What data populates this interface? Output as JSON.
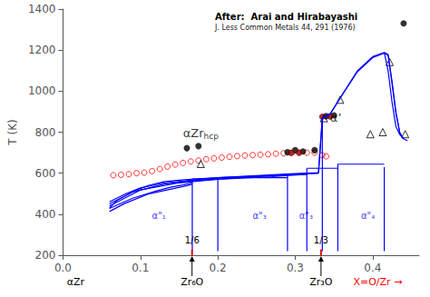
{
  "chart_data": {
    "type": "line",
    "title": "After:  Arai and Hirabayashi",
    "subtitle": "J. Less Common Metals 44, 291 (1976)",
    "y_label": "T (K)",
    "xlim": [
      0.0,
      0.46
    ],
    "ylim": [
      200,
      1400
    ],
    "xticks": [
      {
        "value": 0,
        "label": "0.0"
      },
      0.1,
      0.2,
      0.3,
      0.4
    ],
    "yticks": [
      200,
      400,
      600,
      800,
      1000,
      1200,
      1400
    ],
    "grid": false,
    "series": [
      {
        "type": "line",
        "color": "blue",
        "x": [
          0.06,
          0.07,
          0.09,
          0.11,
          0.13,
          0.15,
          0.17,
          0.2,
          0.25,
          0.3,
          0.33
        ],
        "values": [
          430,
          468,
          510,
          540,
          558,
          566,
          572,
          578,
          586,
          594,
          600
        ]
      },
      {
        "type": "line",
        "color": "blue",
        "x": [
          0.06,
          0.08,
          0.1,
          0.13,
          0.17,
          0.2,
          0.25,
          0.3,
          0.33,
          0.335,
          0.345,
          0.36,
          0.38,
          0.4,
          0.415,
          0.42,
          0.425,
          0.43,
          0.435,
          0.44
        ],
        "values": [
          460,
          498,
          528,
          552,
          568,
          578,
          588,
          598,
          603,
          868,
          888,
          978,
          1098,
          1168,
          1188,
          1178,
          1048,
          898,
          798,
          768
        ]
      },
      {
        "type": "line",
        "color": "blue",
        "x": [
          0.06,
          0.09,
          0.13,
          0.17,
          0.22,
          0.28,
          0.315,
          0.33,
          0.335,
          0.345,
          0.36,
          0.38,
          0.4,
          0.415,
          0.42,
          0.425,
          0.43,
          0.435,
          0.44
        ],
        "values": [
          450,
          508,
          546,
          564,
          576,
          590,
          598,
          600,
          868,
          888,
          978,
          1093,
          1163,
          1186,
          1173,
          1038,
          893,
          798,
          766
        ]
      },
      {
        "type": "line",
        "color": "blue",
        "x": [
          0.06,
          0.1,
          0.15,
          0.2,
          0.27,
          0.315
        ],
        "values": [
          440,
          518,
          553,
          570,
          583,
          595
        ]
      },
      {
        "type": "line",
        "color": "blue",
        "x": [
          0.06,
          0.09,
          0.12,
          0.14,
          0.155,
          0.167
        ],
        "values": [
          428,
          478,
          513,
          533,
          543,
          553
        ]
      },
      {
        "type": "line",
        "color": "blue",
        "x": [
          0.06,
          0.08,
          0.11,
          0.14,
          0.155,
          0.167
        ],
        "values": [
          413,
          453,
          498,
          523,
          535,
          546
        ]
      },
      {
        "type": "line",
        "color": "blue",
        "x": [
          0.415,
          0.42,
          0.425,
          0.43,
          0.435,
          0.44,
          0.445
        ],
        "values": [
          1188,
          1098,
          948,
          828,
          788,
          768,
          758
        ]
      },
      {
        "type": "line",
        "color": "blue",
        "x": [
          0.167,
          0.167
        ],
        "values": [
          220,
          572
        ]
      },
      {
        "type": "line",
        "color": "blue",
        "x": [
          0.2,
          0.2
        ],
        "values": [
          220,
          578
        ]
      },
      {
        "type": "line",
        "color": "blue",
        "x": [
          0.29,
          0.29
        ],
        "values": [
          220,
          594
        ]
      },
      {
        "type": "line",
        "color": "blue",
        "x": [
          0.315,
          0.315
        ],
        "values": [
          220,
          624
        ]
      },
      {
        "type": "line",
        "color": "blue",
        "x": [
          0.335,
          0.335
        ],
        "values": [
          220,
          868
        ]
      },
      {
        "type": "line",
        "color": "blue",
        "x": [
          0.355,
          0.355
        ],
        "values": [
          220,
          644
        ]
      },
      {
        "type": "line",
        "color": "blue",
        "x": [
          0.415,
          0.415
        ],
        "values": [
          220,
          630
        ]
      },
      {
        "type": "line",
        "color": "blue",
        "x": [
          0.167,
          0.2
        ],
        "values": [
          572,
          572
        ]
      },
      {
        "type": "line",
        "color": "blue",
        "x": [
          0.2,
          0.29
        ],
        "values": [
          578,
          578
        ]
      },
      {
        "type": "line",
        "color": "blue",
        "x": [
          0.29,
          0.315
        ],
        "values": [
          594,
          594
        ]
      },
      {
        "type": "line",
        "color": "blue",
        "x": [
          0.315,
          0.355
        ],
        "values": [
          624,
          624
        ]
      },
      {
        "type": "line",
        "color": "blue",
        "x": [
          0.355,
          0.415
        ],
        "values": [
          644,
          644
        ]
      },
      {
        "type": "scatter",
        "marker": "open_circle",
        "color": "red",
        "x": [
          0.065,
          0.075,
          0.085,
          0.095,
          0.105,
          0.115,
          0.125,
          0.135,
          0.145,
          0.155,
          0.165,
          0.175,
          0.185,
          0.195,
          0.205,
          0.215,
          0.225,
          0.235,
          0.245,
          0.255,
          0.265,
          0.275,
          0.285,
          0.295,
          0.305,
          0.315,
          0.325,
          0.335,
          0.34
        ],
        "values": [
          590,
          592,
          595,
          600,
          603,
          610,
          620,
          632,
          642,
          650,
          657,
          662,
          668,
          672,
          676,
          680,
          683,
          686,
          688,
          690,
          692,
          695,
          697,
          698,
          699,
          700,
          700,
          688,
          682
        ]
      },
      {
        "type": "scatter",
        "marker": "filled_circle",
        "color": "black",
        "x": [
          0.16,
          0.175,
          0.29,
          0.3,
          0.31,
          0.325,
          0.34,
          0.35,
          0.44
        ],
        "values": [
          722,
          732,
          702,
          712,
          706,
          712,
          878,
          882,
          1330
        ]
      },
      {
        "type": "scatter",
        "marker": "filled_circle",
        "color": "#8b0000",
        "x": [
          0.335,
          0.345,
          0.295,
          0.305
        ],
        "values": [
          875,
          877,
          700,
          700
        ]
      },
      {
        "type": "scatter",
        "marker": "open_triangle",
        "color": "black",
        "x": [
          0.178,
          0.337,
          0.358,
          0.397,
          0.413,
          0.422,
          0.442
        ],
        "values": [
          645,
          868,
          958,
          790,
          800,
          1142,
          790
        ]
      },
      {
        "type": "line",
        "color": "red",
        "x": [
          0.1667,
          0.1667
        ],
        "values": [
          200,
          228
        ],
        "label": "1/6"
      },
      {
        "type": "line",
        "color": "red",
        "x": [
          0.3333,
          0.3333
        ],
        "values": [
          200,
          228
        ],
        "label": "1/3"
      }
    ],
    "annotations": [
      {
        "text": "αZr",
        "subscript": "hcp",
        "x": 0.155,
        "y": 760,
        "color": "black"
      },
      {
        "text": "α’",
        "x": 0.345,
        "y": 840,
        "color": "black"
      },
      {
        "text": "α\"₁",
        "x": 0.115,
        "y": 370,
        "color": "blue"
      },
      {
        "text": "α\"₃",
        "x": 0.245,
        "y": 370,
        "color": "blue"
      },
      {
        "text": "α\"₃",
        "x": 0.305,
        "y": 370,
        "color": "blue"
      },
      {
        "text": "α\"₄",
        "x": 0.385,
        "y": 370,
        "color": "blue"
      },
      {
        "text": "Zr₆O",
        "x": 0.1667,
        "marker": "arrow",
        "color": "black"
      },
      {
        "text": "Zr₃O",
        "x": 0.3333,
        "marker": "arrow",
        "color": "black"
      },
      {
        "text": "αZr",
        "x": 0.005,
        "color": "black"
      },
      {
        "text": "X=O/Zr →",
        "x": 0.375,
        "color": "red"
      }
    ]
  }
}
